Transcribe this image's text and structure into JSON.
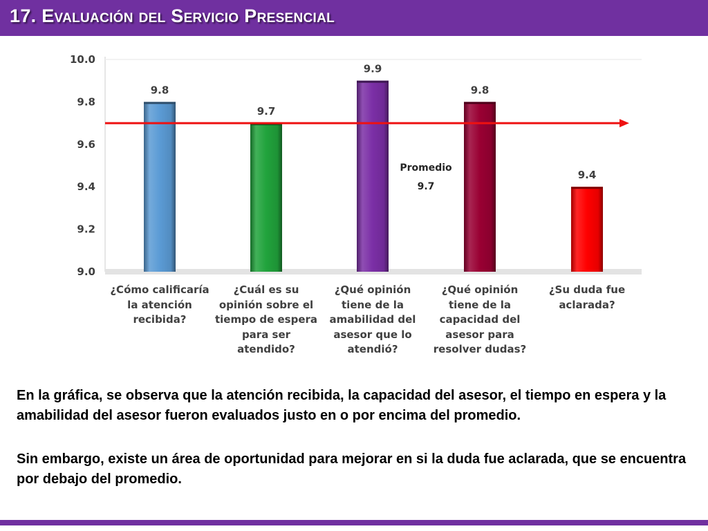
{
  "header": {
    "title": "17. Evaluación del Servicio Presencial"
  },
  "colors": {
    "header_bg": "#7030a0",
    "average_line": "#ee1111",
    "bars": [
      "#5b9bd5",
      "#21a33c",
      "#7b2fa6",
      "#990033",
      "#ff0000"
    ]
  },
  "chart_data": {
    "type": "bar",
    "categories": [
      "¿Cómo calificaría\nla atención\nrecibida?",
      "¿Cuál es su\nopinión sobre el\ntiempo de espera\npara ser\natendido?",
      "¿Qué opinión\ntiene de la\namabilidad del\nasesor que lo\natendió?",
      "¿Qué opinión\ntiene de la\ncapacidad del\nasesor para\nresolver dudas?",
      "¿Su duda fue\naclarada?"
    ],
    "values": [
      9.8,
      9.7,
      9.9,
      9.8,
      9.4
    ],
    "data_labels": [
      "9.8",
      "9.7",
      "9.9",
      "9.8",
      "9.4"
    ],
    "ylim": [
      9.0,
      10.0
    ],
    "yticks": [
      "9.0",
      "9.2",
      "9.4",
      "9.6",
      "9.8",
      "10.0"
    ],
    "average": {
      "value": 9.7,
      "label_line1": "Promedio",
      "label_line2": "9.7"
    },
    "grid": false,
    "legend": "none"
  },
  "paragraphs": [
    "En la gráfica, se observa que la atención recibida, la capacidad del asesor, el tiempo en espera y la amabilidad del asesor fueron evaluados justo en o por encima del promedio.",
    "Sin embargo, existe un área de oportunidad para mejorar en si la duda fue aclarada, que se encuentra por debajo del promedio."
  ]
}
